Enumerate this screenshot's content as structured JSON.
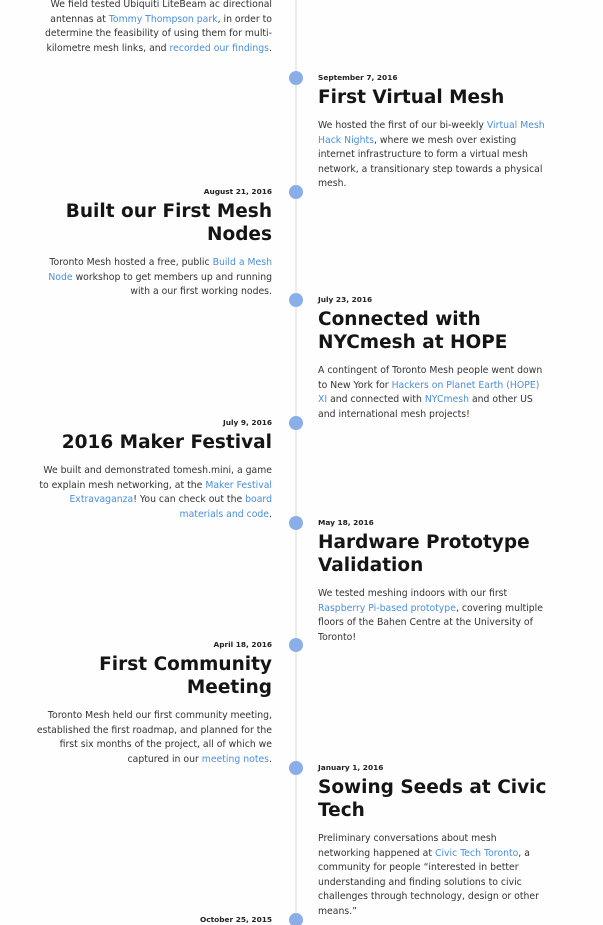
{
  "entries": [
    {
      "date": "",
      "title": "",
      "desc": [
        {
          "t": "We field tested Ubiquiti LiteBeam ac directional antennas at "
        },
        {
          "t": "Tommy Thompson park",
          "link": true
        },
        {
          "t": ", in order to determine the feasibility of using them for multi-kilometre mesh links, and "
        },
        {
          "t": "recorded our findings",
          "link": true
        },
        {
          "t": "."
        }
      ]
    },
    {
      "date": "September 7, 2016",
      "title": "First Virtual Mesh",
      "desc": [
        {
          "t": "We hosted the first of our bi-weekly "
        },
        {
          "t": "Virtual Mesh Hack Nights",
          "link": true
        },
        {
          "t": ", where we mesh over existing internet infrastructure to form a virtual mesh network, a transitionary step towards a physical mesh."
        }
      ]
    },
    {
      "date": "August 21, 2016",
      "title": "Built our First Mesh Nodes",
      "desc": [
        {
          "t": "Toronto Mesh hosted a free, public "
        },
        {
          "t": "Build a Mesh Node",
          "link": true
        },
        {
          "t": " workshop to get members up and running with a our first working nodes."
        }
      ]
    },
    {
      "date": "July 23, 2016",
      "title": "Connected with NYCmesh at HOPE",
      "desc": [
        {
          "t": "A contingent of Toronto Mesh people went down to New York for "
        },
        {
          "t": "Hackers on Planet Earth (HOPE) XI",
          "link": true
        },
        {
          "t": " and connected with "
        },
        {
          "t": "NYCmesh",
          "link": true
        },
        {
          "t": " and other US and international mesh projects!"
        }
      ]
    },
    {
      "date": "July 9, 2016",
      "title": "2016 Maker Festival",
      "desc": [
        {
          "t": "We built and demonstrated tomesh.mini, a game to explain mesh networking, at the "
        },
        {
          "t": "Maker Festival Extravaganza",
          "link": true
        },
        {
          "t": "! You can check out the "
        },
        {
          "t": "board materials and code",
          "link": true
        },
        {
          "t": "."
        }
      ]
    },
    {
      "date": "May 18, 2016",
      "title": "Hardware Prototype Validation",
      "desc": [
        {
          "t": "We tested meshing indoors with our first "
        },
        {
          "t": "Raspberry Pi-based prototype",
          "link": true
        },
        {
          "t": ", covering multiple floors of the Bahen Centre at the University of Toronto!"
        }
      ]
    },
    {
      "date": "April 18, 2016",
      "title": "First Community Meeting",
      "desc": [
        {
          "t": "Toronto Mesh held our first community meeting, established the first roadmap, and planned for the first six months of the project, all of which we captured in our "
        },
        {
          "t": "meeting notes",
          "link": true
        },
        {
          "t": "."
        }
      ]
    },
    {
      "date": "January 1, 2016",
      "title": "Sowing Seeds at Civic Tech",
      "desc": [
        {
          "t": "Preliminary conversations about mesh networking happened at "
        },
        {
          "t": "Civic Tech Toronto",
          "link": true
        },
        {
          "t": ", a community for people “interested in better understanding and finding solutions to civic challenges through technology, design or other means.”"
        }
      ]
    },
    {
      "date": "October 25, 2015",
      "title": "",
      "desc": []
    }
  ],
  "colors": {
    "link": "#4a8fd9",
    "dot": "#8aaee8",
    "line": "#ececec"
  }
}
